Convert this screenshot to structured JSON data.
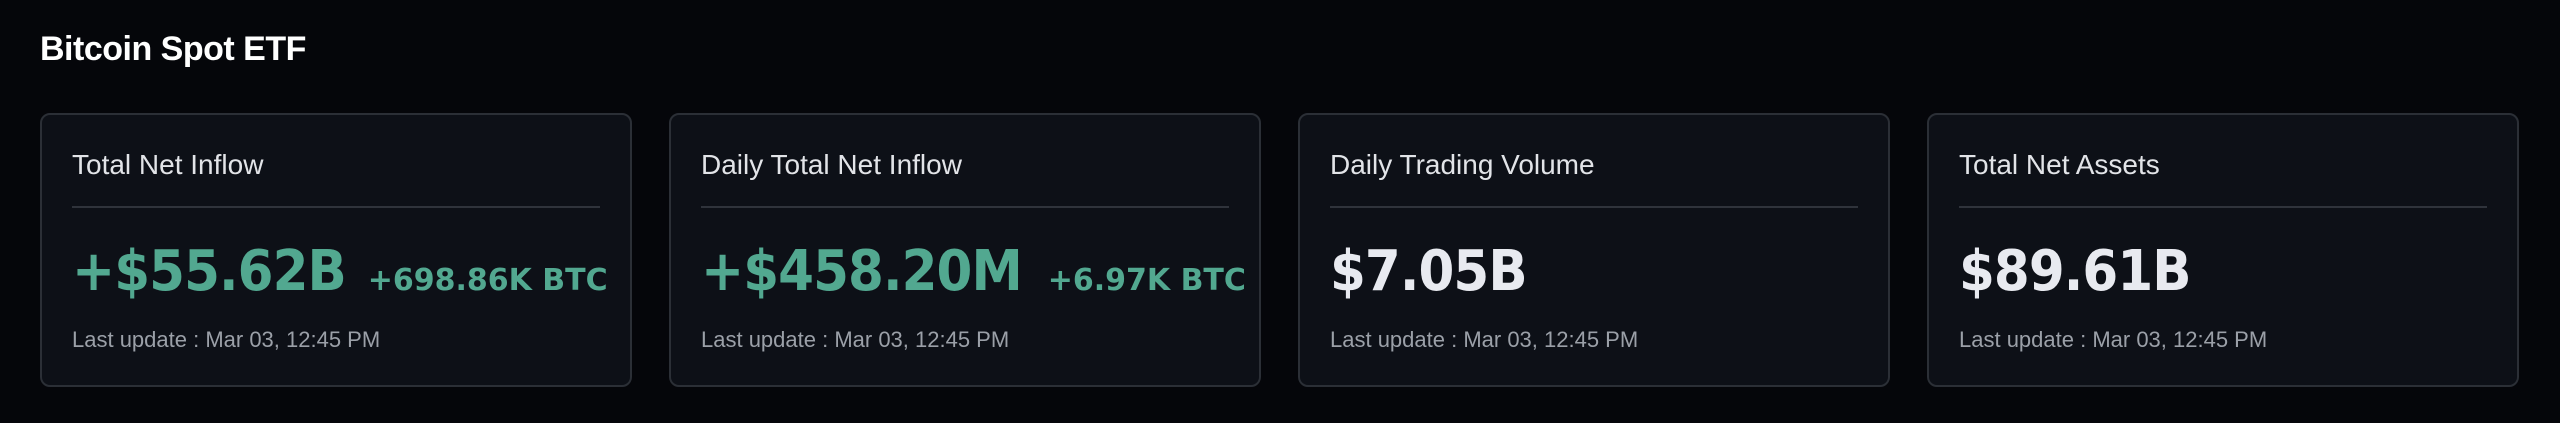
{
  "page": {
    "title": "Bitcoin Spot ETF"
  },
  "colors": {
    "positive": "#52a890",
    "neutral": "#e8eaf0",
    "background": "#05060a",
    "card": "#0d1017"
  },
  "cards": [
    {
      "label": "Total Net Inflow",
      "value": "+$55.62B",
      "sub_value": "+698.86K BTC",
      "last_update": "Last update : Mar 03, 12:45 PM"
    },
    {
      "label": "Daily Total Net Inflow",
      "value": "+$458.20M",
      "sub_value": "+6.97K BTC",
      "last_update": "Last update : Mar 03, 12:45 PM"
    },
    {
      "label": "Daily Trading Volume",
      "value": "$7.05B",
      "last_update": "Last update : Mar 03, 12:45 PM"
    },
    {
      "label": "Total Net Assets",
      "value": "$89.61B",
      "last_update": "Last update : Mar 03, 12:45 PM"
    }
  ]
}
